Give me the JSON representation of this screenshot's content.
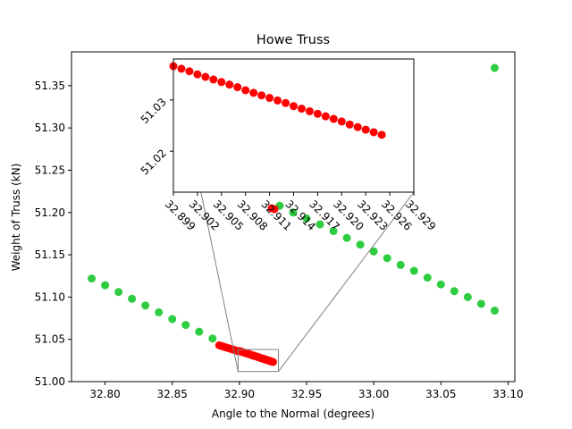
{
  "chart_data": {
    "type": "scatter",
    "title": "Howe Truss",
    "xlabel": "Angle to the Normal (degrees)",
    "ylabel": "Weight of Truss (kN)",
    "xlim": [
      32.775,
      33.105
    ],
    "ylim": [
      51.0,
      51.39
    ],
    "xticks": [
      "32.80",
      "32.85",
      "32.90",
      "32.95",
      "33.00",
      "33.05",
      "33.10"
    ],
    "xtick_values": [
      32.8,
      32.85,
      32.9,
      32.95,
      33.0,
      33.05,
      33.1
    ],
    "yticks": [
      "51.00",
      "51.05",
      "51.10",
      "51.15",
      "51.20",
      "51.25",
      "51.30",
      "51.35"
    ],
    "ytick_values": [
      51.0,
      51.05,
      51.1,
      51.15,
      51.2,
      51.25,
      51.3,
      51.35
    ],
    "grid": false,
    "colors": {
      "green": "#2ecc40",
      "red": "#ff0000",
      "connector": "#808080"
    },
    "series": [
      {
        "color": "#2ecc40",
        "points": [
          [
            32.79,
            51.122
          ],
          [
            32.8,
            51.114
          ],
          [
            32.81,
            51.106
          ],
          [
            32.82,
            51.098
          ],
          [
            32.83,
            51.09
          ],
          [
            32.84,
            51.082
          ],
          [
            32.85,
            51.074
          ],
          [
            32.86,
            51.067
          ],
          [
            32.87,
            51.059
          ],
          [
            32.88,
            51.051
          ],
          [
            32.93,
            51.208
          ],
          [
            32.94,
            51.2
          ],
          [
            32.95,
            51.193
          ],
          [
            32.96,
            51.186
          ],
          [
            32.97,
            51.178
          ],
          [
            32.98,
            51.17
          ],
          [
            32.99,
            51.162
          ],
          [
            33.0,
            51.154
          ],
          [
            33.01,
            51.146
          ],
          [
            33.02,
            51.138
          ],
          [
            33.03,
            51.131
          ],
          [
            33.04,
            51.123
          ],
          [
            33.05,
            51.115
          ],
          [
            33.06,
            51.107
          ],
          [
            33.07,
            51.1
          ],
          [
            33.08,
            51.092
          ],
          [
            33.09,
            51.084
          ],
          [
            33.09,
            51.371
          ]
        ]
      },
      {
        "color": "#ff0000",
        "points": [
          [
            32.885,
            51.043
          ],
          [
            32.887,
            51.042
          ],
          [
            32.889,
            51.041
          ],
          [
            32.891,
            51.04
          ],
          [
            32.893,
            51.039
          ],
          [
            32.895,
            51.038
          ],
          [
            32.897,
            51.037
          ],
          [
            32.899,
            51.036
          ],
          [
            32.9,
            51.0362
          ],
          [
            32.901,
            51.0357
          ],
          [
            32.902,
            51.0352
          ],
          [
            32.903,
            51.0346
          ],
          [
            32.904,
            51.0341
          ],
          [
            32.905,
            51.0336
          ],
          [
            32.906,
            51.0331
          ],
          [
            32.907,
            51.0326
          ],
          [
            32.908,
            51.0321
          ],
          [
            32.909,
            51.0315
          ],
          [
            32.91,
            51.031
          ],
          [
            32.911,
            51.0305
          ],
          [
            32.912,
            51.03
          ],
          [
            32.913,
            51.0295
          ],
          [
            32.914,
            51.029
          ],
          [
            32.915,
            51.0284
          ],
          [
            32.916,
            51.0279
          ],
          [
            32.917,
            51.0274
          ],
          [
            32.918,
            51.0269
          ],
          [
            32.919,
            51.0264
          ],
          [
            32.92,
            51.0258
          ],
          [
            32.921,
            51.0253
          ],
          [
            32.922,
            51.0248
          ],
          [
            32.923,
            51.0243
          ],
          [
            32.924,
            51.0238
          ],
          [
            32.925,
            51.0232
          ],
          [
            32.924,
            51.205
          ],
          [
            32.926,
            51.204
          ]
        ]
      }
    ],
    "zoom_box": {
      "xlim": [
        32.899,
        32.929
      ],
      "ylim": [
        51.012,
        51.038
      ]
    },
    "inset": {
      "xlim": [
        32.899,
        32.929
      ],
      "ylim": [
        51.012,
        51.038
      ],
      "xticks": [
        "32.899",
        "32.902",
        "32.905",
        "32.908",
        "32.911",
        "32.914",
        "32.917",
        "32.920",
        "32.923",
        "32.926",
        "32.929"
      ],
      "xtick_values": [
        32.899,
        32.902,
        32.905,
        32.908,
        32.911,
        32.914,
        32.917,
        32.92,
        32.923,
        32.926,
        32.929
      ],
      "yticks": [
        "51.02",
        "51.03"
      ],
      "ytick_values": [
        51.02,
        51.03
      ],
      "points": [
        [
          32.899,
          51.0366
        ],
        [
          32.9,
          51.0361
        ],
        [
          32.901,
          51.0356
        ],
        [
          32.902,
          51.035
        ],
        [
          32.903,
          51.0345
        ],
        [
          32.904,
          51.034
        ],
        [
          32.905,
          51.0335
        ],
        [
          32.906,
          51.033
        ],
        [
          32.907,
          51.0325
        ],
        [
          32.908,
          51.0319
        ],
        [
          32.909,
          51.0314
        ],
        [
          32.91,
          51.0309
        ],
        [
          32.911,
          51.0304
        ],
        [
          32.912,
          51.0299
        ],
        [
          32.913,
          51.0294
        ],
        [
          32.914,
          51.0288
        ],
        [
          32.915,
          51.0283
        ],
        [
          32.916,
          51.0278
        ],
        [
          32.917,
          51.0273
        ],
        [
          32.918,
          51.0268
        ],
        [
          32.919,
          51.0263
        ],
        [
          32.92,
          51.0258
        ],
        [
          32.921,
          51.0252
        ],
        [
          32.922,
          51.0247
        ],
        [
          32.923,
          51.0242
        ],
        [
          32.924,
          51.0237
        ],
        [
          32.925,
          51.0232
        ]
      ]
    }
  }
}
